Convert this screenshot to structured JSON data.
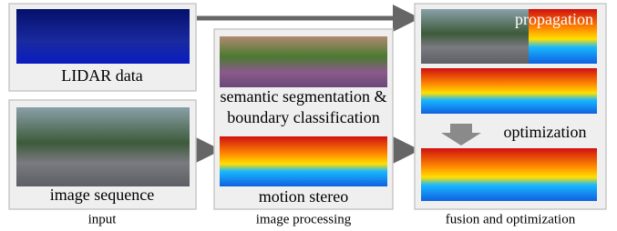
{
  "input": {
    "lidar_label": "LIDAR data",
    "sequence_label": "image sequence",
    "caption": "input"
  },
  "processing": {
    "segmentation_label": [
      "semantic segmentation &",
      "boundary classification"
    ],
    "stereo_label": "motion stereo",
    "caption": "image processing"
  },
  "fusion": {
    "propagation_label": "propagation",
    "optimization_label": "optimization",
    "caption": "fusion and optimization"
  }
}
